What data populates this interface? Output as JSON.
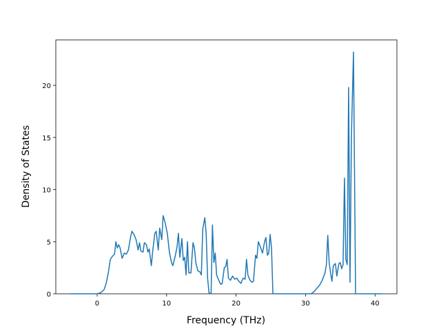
{
  "chart_data": {
    "type": "line",
    "xlabel": "Frequency (THz)",
    "ylabel": "Density of States",
    "x": [
      -3.8,
      0,
      0.5,
      1,
      1.3,
      1.6,
      1.9,
      2.2,
      2.5,
      2.7,
      2.9,
      3.1,
      3.3,
      3.6,
      3.9,
      4.2,
      4.5,
      4.8,
      5.0,
      5.3,
      5.6,
      5.9,
      6.1,
      6.3,
      6.6,
      6.8,
      7.1,
      7.3,
      7.5,
      7.8,
      8.0,
      8.3,
      8.5,
      8.8,
      9.0,
      9.3,
      9.5,
      9.8,
      10.1,
      10.4,
      10.7,
      10.9,
      11.2,
      11.5,
      11.7,
      11.9,
      12.2,
      12.4,
      12.6,
      12.8,
      13.0,
      13.2,
      13.5,
      13.8,
      14.0,
      14.2,
      14.5,
      14.8,
      15.0,
      15.2,
      15.5,
      15.7,
      15.9,
      16.1,
      16.4,
      16.6,
      16.8,
      17.0,
      17.2,
      17.5,
      17.8,
      18.0,
      18.3,
      18.5,
      18.7,
      18.9,
      19.2,
      19.5,
      19.8,
      20.1,
      20.4,
      20.7,
      21.0,
      21.3,
      21.5,
      21.7,
      22.0,
      22.3,
      22.5,
      22.8,
      23.0,
      23.2,
      23.5,
      23.8,
      24.1,
      24.3,
      24.5,
      24.7,
      24.9,
      25.1,
      25.3,
      30.8,
      31.2,
      31.6,
      32.0,
      32.4,
      32.8,
      33.0,
      33.2,
      33.4,
      33.6,
      33.8,
      34.0,
      34.3,
      34.5,
      34.8,
      35.0,
      35.2,
      35.4,
      35.6,
      35.8,
      36.0,
      36.2,
      36.4,
      36.6,
      36.9,
      37.2,
      41
    ],
    "series": [
      {
        "color": "#1f77b4",
        "values": [
          0,
          0,
          0.1,
          0.4,
          1,
          2,
          3.3,
          3.6,
          3.8,
          5.0,
          4.4,
          4.7,
          4.4,
          3.4,
          3.9,
          3.8,
          4.2,
          5.4,
          6.0,
          5.7,
          5.2,
          4.2,
          4.9,
          4.1,
          4.0,
          4.9,
          4.7,
          4.0,
          4.3,
          2.7,
          4.1,
          5.8,
          6.0,
          4.2,
          6.3,
          5.2,
          7.5,
          6.8,
          5.8,
          4.0,
          3.0,
          2.7,
          3.5,
          4.5,
          5.8,
          3.5,
          5.3,
          3.2,
          3.5,
          1.8,
          5.0,
          2.0,
          2.0,
          4.9,
          4.4,
          3.0,
          2.2,
          2.1,
          1.8,
          6.2,
          7.3,
          5.7,
          1.5,
          0.1,
          0,
          6.6,
          3.0,
          3.9,
          1.8,
          1.3,
          0.9,
          1.0,
          2.5,
          2.6,
          3.3,
          1.5,
          1.3,
          1.7,
          1.4,
          1.5,
          1.2,
          1.0,
          1.5,
          1.4,
          3.3,
          1.8,
          1.3,
          1.1,
          1.2,
          3.7,
          3.4,
          5.0,
          4.5,
          3.9,
          5.0,
          5.4,
          3.7,
          3.9,
          5.7,
          4.4,
          0,
          0,
          0.2,
          0.5,
          0.8,
          1.3,
          2.0,
          2.8,
          5.6,
          3.0,
          2.0,
          1.2,
          2.7,
          2.9,
          1.7,
          2.9,
          3.0,
          2.4,
          2.8,
          11.1,
          3.3,
          2.8,
          19.8,
          1.1,
          15.0,
          23.2,
          0,
          0
        ]
      }
    ],
    "xlim": [
      -5.95,
      43.15
    ],
    "ylim": [
      0,
      24.36
    ],
    "xticks": [
      0,
      10,
      20,
      30,
      40
    ],
    "yticks": [
      0,
      5,
      10,
      15,
      20
    ]
  }
}
